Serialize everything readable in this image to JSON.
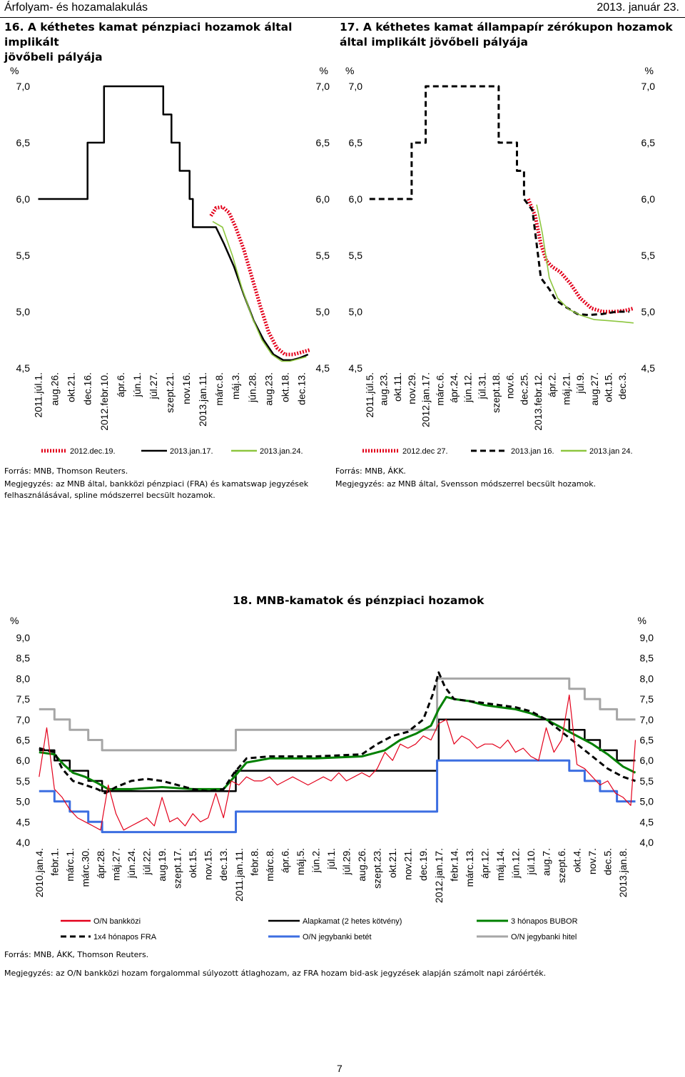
{
  "header": {
    "left": "Árfolyam- és hozamalakulás",
    "right": "2013. január 23."
  },
  "chart16": {
    "title_lines": [
      "16. A kéthetes kamat pénzpiaci hozamok által implikált",
      "jövőbeli pályája"
    ],
    "source": "Forrás: MNB, Thomson Reuters.",
    "note_lines": [
      "Megjegyzés: az MNB által, bankközi pénzpiaci (FRA) és kamatswap jegyzések",
      "felhasználásával, spline módszerrel becsült hozamok."
    ]
  },
  "chart17": {
    "title_lines": [
      "17. A kéthetes kamat állampapír zérókupon hozamok",
      "által implikált jövőbeli pályája"
    ],
    "source": "Forrás: MNB, ÁKK.",
    "note_lines": [
      "Megjegyzés: az MNB által, Svensson módszerrel becsült hozamok."
    ]
  },
  "chart18": {
    "title": "18. MNB-kamatok és pénzpiaci hozamok",
    "source": "Forrás: MNB, ÁKK, Thomson Reuters.",
    "note_lines": [
      "Megjegyzés: az O/N bankközi hozam forgalommal súlyozott átlaghozam, az FRA hozam bid-ask jegyzések alapján számolt napi záróérték."
    ]
  },
  "page_number": "7",
  "colors": {
    "red": "#e3001b",
    "black": "#000000",
    "lightgreen": "#8dc63f",
    "green": "#008000",
    "blue": "#3c6ee1",
    "gray": "#a6a6a6"
  },
  "chart_data": [
    {
      "type": "line",
      "title": "16. A kéthetes kamat pénzpiaci hozamok által implikált jövőbeli pályája",
      "ylabel_left": "%",
      "ylabel_right": "%",
      "ylim": [
        4.5,
        7.0
      ],
      "yticks": [
        "7,0",
        "6,5",
        "6,0",
        "5,5",
        "5,0",
        "4,5"
      ],
      "categories": [
        "2011.júl.1.",
        "aug.26.",
        "okt.21.",
        "dec.16.",
        "2012.febr.10.",
        "ápr.6.",
        "jún.1.",
        "júl.27.",
        "szept.21.",
        "nov.16.",
        "2013.jan.11.",
        "márc.8.",
        "máj.3.",
        "jún.28.",
        "aug.23.",
        "okt.18.",
        "dec.13."
      ],
      "series": [
        {
          "name": "2012.dec.19.",
          "style": "red-dotted",
          "x": [
            10.5,
            10.8,
            11.2,
            11.6,
            12.0,
            12.5,
            13.0,
            13.5,
            14.0,
            14.5,
            15.0,
            15.5,
            16.0,
            16.5
          ],
          "values": [
            5.85,
            5.92,
            5.93,
            5.88,
            5.75,
            5.55,
            5.3,
            5.05,
            4.82,
            4.68,
            4.62,
            4.62,
            4.64,
            4.66
          ]
        },
        {
          "name": "2013.jan.17.",
          "style": "black",
          "x": [
            0,
            3,
            3,
            4,
            4,
            6,
            6,
            7.6,
            7.6,
            8.1,
            8.1,
            8.6,
            8.6,
            9.2,
            9.2,
            9.4,
            9.4,
            10.2,
            10.8,
            11.3,
            11.9,
            12.5,
            13.1,
            13.7,
            14.3,
            14.9,
            15.4,
            15.9,
            16.4
          ],
          "values": [
            6.0,
            6.0,
            6.5,
            6.5,
            7.0,
            7.0,
            7.0,
            7.0,
            6.75,
            6.75,
            6.5,
            6.5,
            6.25,
            6.25,
            6.0,
            6.0,
            5.75,
            5.75,
            5.75,
            5.6,
            5.4,
            5.15,
            4.92,
            4.75,
            4.62,
            4.57,
            4.57,
            4.59,
            4.62
          ]
        },
        {
          "name": "2013.jan.24.",
          "style": "lightgreen",
          "x": [
            10.6,
            11.2,
            11.8,
            12.4,
            13.0,
            13.6,
            14.2,
            14.8,
            15.3,
            15.8,
            16.3
          ],
          "values": [
            5.8,
            5.75,
            5.5,
            5.2,
            4.95,
            4.75,
            4.62,
            4.56,
            4.56,
            4.58,
            4.6
          ]
        }
      ]
    },
    {
      "type": "line",
      "title": "17. A kéthetes kamat állampapír zérókupon hozamok által implikált jövőbeli pályája",
      "ylabel_left": "%",
      "ylabel_right": "%",
      "ylim": [
        4.5,
        7.0
      ],
      "yticks": [
        "7,0",
        "6,5",
        "6,0",
        "5,5",
        "5,0",
        "4,5"
      ],
      "categories": [
        "2011.júl.5.",
        "aug.23.",
        "okt.11.",
        "nov.29.",
        "2012.jan.17.",
        "márc.6.",
        "ápr.24.",
        "jún.12.",
        "júl.31.",
        "szept.18.",
        "nov.6.",
        "dec.25.",
        "2013.febr.12.",
        "ápr.2.",
        "máj.21.",
        "júl.9.",
        "aug.27.",
        "okt.15.",
        "dec.3."
      ],
      "series": [
        {
          "name": "2012.dec 27.",
          "style": "red-dotted",
          "x": [
            11.3,
            11.8,
            12.2,
            12.6,
            13.0,
            13.6,
            14.3,
            15.0,
            15.8,
            16.6,
            17.4,
            18.2,
            18.8
          ],
          "values": [
            6.0,
            5.85,
            5.6,
            5.45,
            5.4,
            5.35,
            5.25,
            5.12,
            5.03,
            5.0,
            5.0,
            5.01,
            5.03
          ]
        },
        {
          "name": "2013.jan 16.",
          "style": "black-dashed",
          "x": [
            0,
            3,
            3,
            4,
            4,
            9.2,
            9.2,
            10.5,
            10.5,
            11.0,
            11.0,
            11.6,
            11.9,
            12.2,
            12.5,
            12.8,
            13.3,
            14.0,
            14.8,
            15.6,
            16.6,
            17.6,
            18.5
          ],
          "values": [
            6.0,
            6.0,
            6.5,
            6.5,
            7.0,
            7.0,
            6.5,
            6.5,
            6.25,
            6.25,
            6.0,
            5.9,
            5.6,
            5.3,
            5.25,
            5.2,
            5.1,
            5.04,
            4.98,
            4.97,
            4.98,
            5.0,
            5.0
          ]
        },
        {
          "name": "2013.jan 24.",
          "style": "lightgreen",
          "x": [
            11.9,
            12.3,
            12.8,
            13.4,
            14.2,
            15.0,
            16.0,
            17.0,
            18.0,
            18.8
          ],
          "values": [
            5.95,
            5.7,
            5.3,
            5.12,
            5.02,
            4.97,
            4.93,
            4.92,
            4.91,
            4.9
          ]
        }
      ]
    },
    {
      "type": "line",
      "title": "18. MNB-kamatok és pénzpiaci hozamok",
      "ylabel_left": "%",
      "ylabel_right": "%",
      "ylim": [
        4.0,
        9.0
      ],
      "yticks": [
        "9,0",
        "8,5",
        "8,0",
        "7,5",
        "7,0",
        "6,5",
        "6,0",
        "5,5",
        "5,0",
        "4,5",
        "4,0"
      ],
      "categories": [
        "2010.jan.4.",
        "febr.1.",
        "márc.1.",
        "márc.30.",
        "ápr.28.",
        "máj.27.",
        "jún.24.",
        "júl.22.",
        "aug.19.",
        "szept.17.",
        "okt.15.",
        "nov.15.",
        "dec.13.",
        "2011.jan.11.",
        "febr.8.",
        "márc.8.",
        "ápr.6.",
        "máj.5.",
        "jún.2.",
        "júl.1.",
        "júl.29.",
        "aug.26.",
        "szept.23.",
        "okt.21.",
        "nov.21.",
        "dec.19.",
        "2012.jan.17.",
        "febr.14.",
        "márc.13.",
        "ápr.12.",
        "máj.14.",
        "jún.12.",
        "júl.10.",
        "aug.7.",
        "szept.6.",
        "okt.4.",
        "nov.7.",
        "dec.5.",
        "2013.jan.8."
      ],
      "series": [
        {
          "name": "Alapkamat (2 hetes kötvény)",
          "style": "black",
          "x": [
            0,
            1.0,
            1.0,
            2.0,
            2.0,
            3.2,
            3.2,
            4.1,
            4.1,
            12.8,
            12.8,
            25.9,
            25.9,
            26.0,
            26.0,
            34.5,
            34.5,
            35.5,
            35.5,
            36.5,
            36.5,
            37.6,
            37.6,
            38.8
          ],
          "values": [
            6.25,
            6.25,
            6.0,
            6.0,
            5.75,
            5.75,
            5.5,
            5.5,
            5.25,
            5.25,
            5.75,
            5.75,
            6.0,
            6.0,
            7.0,
            7.0,
            6.75,
            6.75,
            6.5,
            6.5,
            6.25,
            6.25,
            6.0,
            6.0
          ]
        },
        {
          "name": "O/N jegybanki betét",
          "style": "blue",
          "x": [
            0,
            1.0,
            1.0,
            2.0,
            2.0,
            3.2,
            3.2,
            4.1,
            4.1,
            12.8,
            12.8,
            25.9,
            25.9,
            34.5,
            34.5,
            35.5,
            35.5,
            36.5,
            36.5,
            37.6,
            37.6,
            38.8
          ],
          "values": [
            5.25,
            5.25,
            5.0,
            5.0,
            4.75,
            4.75,
            4.5,
            4.5,
            4.25,
            4.25,
            4.75,
            4.75,
            6.0,
            6.0,
            5.75,
            5.75,
            5.5,
            5.5,
            5.25,
            5.25,
            5.0,
            5.0
          ]
        },
        {
          "name": "O/N jegybanki hitel",
          "style": "gray",
          "x": [
            0,
            1.0,
            1.0,
            2.0,
            2.0,
            3.2,
            3.2,
            4.1,
            4.1,
            12.8,
            12.8,
            25.9,
            25.9,
            34.5,
            34.5,
            35.5,
            35.5,
            36.5,
            36.5,
            37.6,
            37.6,
            38.8
          ],
          "values": [
            7.25,
            7.25,
            7.0,
            7.0,
            6.75,
            6.75,
            6.5,
            6.5,
            6.25,
            6.25,
            6.75,
            6.75,
            8.0,
            8.0,
            7.75,
            7.75,
            7.5,
            7.5,
            7.25,
            7.25,
            7.0,
            7.0
          ]
        },
        {
          "name": "3 hónapos BUBOR",
          "style": "green",
          "x": [
            0,
            1.0,
            1.6,
            2.2,
            3.0,
            3.8,
            4.5,
            6.0,
            8.0,
            10.0,
            12.0,
            12.7,
            13.5,
            15.0,
            18.0,
            21.0,
            22.5,
            23.5,
            24.5,
            25.5,
            26.0,
            26.5,
            27.0,
            28.0,
            29.0,
            30.0,
            31.0,
            32.0,
            33.0,
            34.0,
            35.0,
            36.0,
            37.0,
            38.0,
            38.8
          ],
          "values": [
            6.2,
            6.15,
            5.9,
            5.7,
            5.6,
            5.45,
            5.3,
            5.3,
            5.35,
            5.3,
            5.3,
            5.6,
            5.95,
            6.05,
            6.05,
            6.1,
            6.25,
            6.5,
            6.65,
            6.85,
            7.25,
            7.55,
            7.5,
            7.45,
            7.35,
            7.3,
            7.25,
            7.15,
            7.0,
            6.8,
            6.6,
            6.4,
            6.15,
            5.85,
            5.7
          ]
        },
        {
          "name": "1x4 hónapos FRA",
          "style": "black-dashed",
          "x": [
            0,
            1.0,
            1.5,
            2.2,
            3.0,
            3.8,
            4.3,
            5.0,
            6.0,
            7.0,
            8.0,
            9.0,
            10.0,
            11.0,
            12.0,
            12.7,
            13.5,
            15.0,
            18.0,
            21.0,
            22.0,
            23.0,
            24.0,
            25.0,
            25.6,
            26.0,
            26.4,
            27.0,
            28.0,
            29.0,
            30.0,
            31.0,
            32.0,
            33.0,
            34.0,
            35.0,
            36.0,
            37.0,
            38.0,
            38.8
          ],
          "values": [
            6.3,
            6.2,
            5.8,
            5.5,
            5.4,
            5.3,
            5.2,
            5.35,
            5.5,
            5.55,
            5.5,
            5.4,
            5.3,
            5.25,
            5.3,
            5.7,
            6.05,
            6.1,
            6.1,
            6.15,
            6.4,
            6.6,
            6.7,
            7.0,
            7.6,
            8.15,
            7.8,
            7.5,
            7.45,
            7.4,
            7.35,
            7.3,
            7.2,
            7.0,
            6.7,
            6.4,
            6.1,
            5.8,
            5.6,
            5.5
          ]
        },
        {
          "name": "O/N bankközi",
          "style": "red",
          "x": [
            0,
            0.5,
            1.0,
            1.5,
            2.0,
            2.5,
            3.0,
            3.5,
            4.0,
            4.5,
            5.0,
            5.5,
            6.0,
            6.5,
            7.0,
            7.5,
            8.0,
            8.5,
            9.0,
            9.5,
            10.0,
            10.5,
            11.0,
            11.5,
            12.0,
            12.5,
            13.0,
            13.5,
            14.0,
            14.5,
            15.0,
            15.5,
            16.0,
            16.5,
            17.0,
            17.5,
            18.0,
            18.5,
            19.0,
            19.5,
            20.0,
            20.5,
            21.0,
            21.5,
            22.0,
            22.5,
            23.0,
            23.5,
            24.0,
            24.5,
            25.0,
            25.5,
            26.0,
            26.5,
            27.0,
            27.5,
            28.0,
            28.5,
            29.0,
            29.5,
            30.0,
            30.5,
            31.0,
            31.5,
            32.0,
            32.5,
            33.0,
            33.5,
            34.0,
            34.5,
            35.0,
            35.5,
            36.0,
            36.5,
            37.0,
            37.5,
            38.0,
            38.5,
            38.8
          ],
          "values": [
            5.6,
            6.8,
            5.3,
            5.1,
            4.8,
            4.6,
            4.5,
            4.4,
            4.3,
            5.4,
            4.7,
            4.3,
            4.4,
            4.5,
            4.6,
            4.4,
            5.1,
            4.5,
            4.6,
            4.4,
            4.7,
            4.5,
            4.6,
            5.2,
            4.6,
            5.5,
            5.4,
            5.6,
            5.5,
            5.5,
            5.6,
            5.4,
            5.5,
            5.6,
            5.5,
            5.4,
            5.5,
            5.6,
            5.5,
            5.7,
            5.5,
            5.6,
            5.7,
            5.6,
            5.8,
            6.2,
            6.0,
            6.4,
            6.3,
            6.4,
            6.6,
            6.5,
            6.9,
            7.0,
            6.4,
            6.6,
            6.5,
            6.3,
            6.4,
            6.4,
            6.3,
            6.5,
            6.2,
            6.3,
            6.1,
            6.0,
            6.8,
            6.2,
            6.5,
            7.6,
            5.9,
            5.8,
            5.6,
            5.4,
            5.5,
            5.2,
            5.1,
            4.9,
            6.5
          ]
        }
      ]
    }
  ]
}
